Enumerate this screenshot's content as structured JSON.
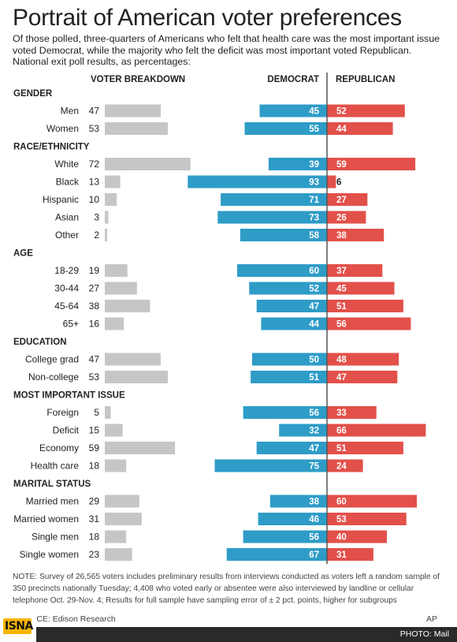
{
  "chart_data": {
    "type": "bar",
    "title": "Portrait of American voter preferences",
    "subtitle": "Of those polled, three-quarters of Americans who felt that health care was the most important issue voted Democrat, while the majority who felt the deficit was most important voted Republican. National exit poll results, as percentages:",
    "column_headers": {
      "breakdown": "VOTER BREAKDOWN",
      "democrat": "DEMOCRAT",
      "republican": "REPUBLICAN"
    },
    "colors": {
      "breakdown": "#c6c6c8",
      "democrat": "#2e9cc7",
      "republican": "#e2504a",
      "divider": "#555555"
    },
    "series": [
      {
        "name": "VOTER BREAKDOWN",
        "key": "breakdown"
      },
      {
        "name": "DEMOCRAT",
        "key": "democrat"
      },
      {
        "name": "REPUBLICAN",
        "key": "republican"
      }
    ],
    "groups": [
      {
        "name": "GENDER",
        "rows": [
          {
            "label": "Men",
            "breakdown": 47,
            "democrat": 45,
            "republican": 52
          },
          {
            "label": "Women",
            "breakdown": 53,
            "democrat": 55,
            "republican": 44
          }
        ]
      },
      {
        "name": "RACE/ETHNICITY",
        "rows": [
          {
            "label": "White",
            "breakdown": 72,
            "democrat": 39,
            "republican": 59
          },
          {
            "label": "Black",
            "breakdown": 13,
            "democrat": 93,
            "republican": 6
          },
          {
            "label": "Hispanic",
            "breakdown": 10,
            "democrat": 71,
            "republican": 27
          },
          {
            "label": "Asian",
            "breakdown": 3,
            "democrat": 73,
            "republican": 26
          },
          {
            "label": "Other",
            "breakdown": 2,
            "democrat": 58,
            "republican": 38
          }
        ]
      },
      {
        "name": "AGE",
        "rows": [
          {
            "label": "18-29",
            "breakdown": 19,
            "democrat": 60,
            "republican": 37
          },
          {
            "label": "30-44",
            "breakdown": 27,
            "democrat": 52,
            "republican": 45
          },
          {
            "label": "45-64",
            "breakdown": 38,
            "democrat": 47,
            "republican": 51
          },
          {
            "label": "65+",
            "breakdown": 16,
            "democrat": 44,
            "republican": 56
          }
        ]
      },
      {
        "name": "EDUCATION",
        "rows": [
          {
            "label": "College grad",
            "breakdown": 47,
            "democrat": 50,
            "republican": 48
          },
          {
            "label": "Non-college",
            "breakdown": 53,
            "democrat": 51,
            "republican": 47
          }
        ]
      },
      {
        "name": "MOST IMPORTANT ISSUE",
        "rows": [
          {
            "label": "Foreign",
            "breakdown": 5,
            "democrat": 56,
            "republican": 33
          },
          {
            "label": "Deficit",
            "breakdown": 15,
            "democrat": 32,
            "republican": 66
          },
          {
            "label": "Economy",
            "breakdown": 59,
            "democrat": 47,
            "republican": 51
          },
          {
            "label": "Health care",
            "breakdown": 18,
            "democrat": 75,
            "republican": 24
          }
        ]
      },
      {
        "name": "MARITAL STATUS",
        "rows": [
          {
            "label": "Married men",
            "breakdown": 29,
            "democrat": 38,
            "republican": 60
          },
          {
            "label": "Married women",
            "breakdown": 31,
            "democrat": 46,
            "republican": 53
          },
          {
            "label": "Single men",
            "breakdown": 18,
            "democrat": 56,
            "republican": 40
          },
          {
            "label": "Single women",
            "breakdown": 23,
            "democrat": 67,
            "republican": 31
          }
        ]
      }
    ],
    "note": "NOTE: Survey of 26,565 voters includes preliminary results from interviews conducted as voters left a random sample of 350 precincts nationally Tuesday; 4,408 who voted early or absentee were also interviewed by landline or cellular telephone Oct. 29-Nov. 4; Results for full sample have sampling error of ± 2 pct. points, higher for subgroups",
    "source": "SOURCE: Edison Research",
    "credit": "AP"
  },
  "footer": {
    "photo_credit": "PHOTO: Mail",
    "logo_text": "ISNA"
  }
}
